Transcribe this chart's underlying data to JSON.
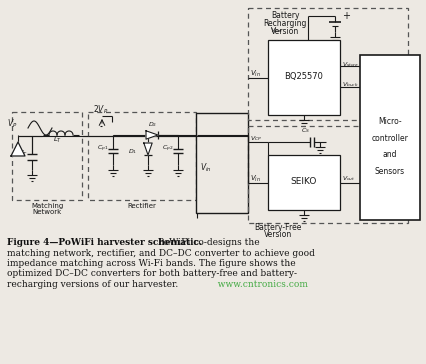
{
  "bg_color": "#ede9e3",
  "lc": "#1a1a1a",
  "dc": "#555555",
  "tc": "#111111",
  "gc": "#44aa44",
  "cap_bold": "Figure 4—PoWiFi harvester schematic.",
  "cap_l1": " PoWiFi co-designs the",
  "cap_l2": "matching network, rectifier, and DC–DC converter to achieve good",
  "cap_l3": "impedance matching across Wi-Fi bands. The figure shows the",
  "cap_l4": "optimized DC–DC converters for both battery-free and battery-",
  "cap_l5": "recharging versions of our harvester.",
  "cap_web": "  www.cntronics.com"
}
